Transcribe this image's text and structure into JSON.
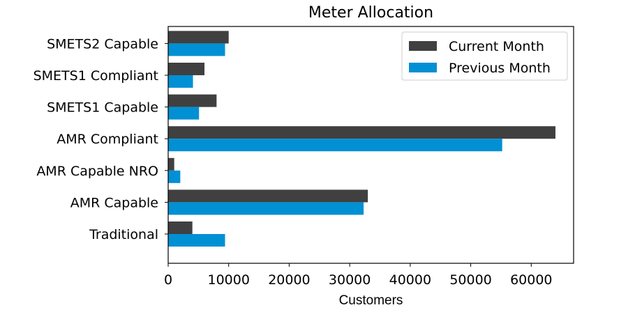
{
  "chart_data": {
    "type": "bar",
    "orientation": "horizontal",
    "title": "Meter Allocation",
    "xlabel": "Customers",
    "ylabel": "",
    "categories": [
      "Traditional",
      "AMR Capable",
      "AMR Capable NRO",
      "AMR Compliant",
      "SMETS1 Capable",
      "SMETS1 Compliant",
      "SMETS2 Capable"
    ],
    "series": [
      {
        "name": "Current Month",
        "color": "#404040",
        "values": [
          4000,
          33000,
          1000,
          64000,
          8000,
          6000,
          10000
        ]
      },
      {
        "name": "Previous Month",
        "color": "#0290d4",
        "values": [
          9400,
          32300,
          2000,
          55200,
          5100,
          4100,
          9400
        ]
      }
    ],
    "xlim": [
      0,
      67000
    ],
    "xticks": [
      0,
      10000,
      20000,
      30000,
      40000,
      50000,
      60000
    ],
    "grid": false,
    "legend_position": "top-right"
  }
}
